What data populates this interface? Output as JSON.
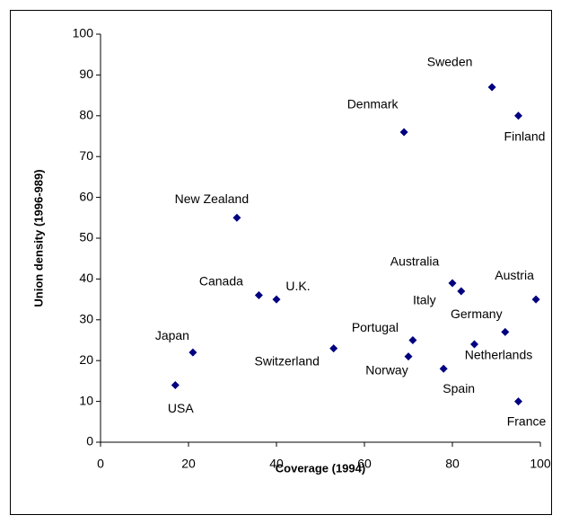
{
  "chart_data": {
    "type": "scatter",
    "xlabel": "Coverage (1994)",
    "ylabel": "Union density (1996-989)",
    "labels": [
      "USA",
      "Japan",
      "New Zealand",
      "Canada",
      "U.K.",
      "Switzerland",
      "Denmark",
      "Norway",
      "Portugal",
      "Australia",
      "Italy",
      "Spain",
      "Netherlands",
      "Sweden",
      "Finland",
      "France",
      "Germany",
      "Austria"
    ],
    "x": [
      17,
      21,
      31,
      36,
      40,
      53,
      69,
      70,
      71,
      80,
      82,
      78,
      85,
      89,
      95,
      95,
      92,
      99
    ],
    "y": [
      14,
      22,
      55,
      36,
      35,
      23,
      76,
      21,
      25,
      39,
      37,
      18,
      24,
      87,
      80,
      10,
      27,
      35
    ],
    "color": "#000080",
    "xlim": [
      0,
      100
    ],
    "xticks": [
      0,
      20,
      40,
      60,
      80,
      100
    ],
    "ylim": [
      0,
      100
    ],
    "yticks": [
      0,
      10,
      20,
      30,
      40,
      50,
      60,
      70,
      80,
      90,
      100
    ]
  }
}
